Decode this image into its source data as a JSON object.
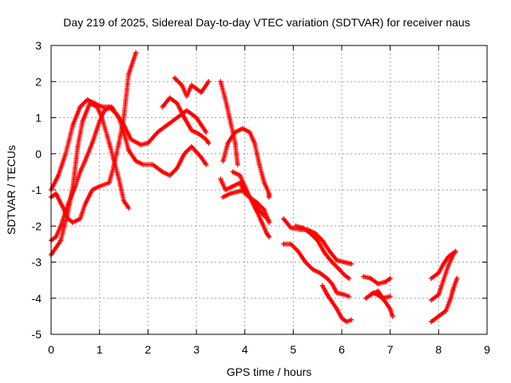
{
  "chart_data": {
    "type": "scatter",
    "title": "Day 219 of 2025, Sidereal Day-to-day VTEC variation (SDTVAR) for receiver naus",
    "xlabel": "GPS time / hours",
    "ylabel": "SDTVAR / TECUs",
    "xlim": [
      0,
      9
    ],
    "ylim": [
      -5,
      3
    ],
    "x_ticks": [
      "0",
      "1",
      "2",
      "3",
      "4",
      "5",
      "6",
      "7",
      "8",
      "9"
    ],
    "y_ticks": [
      "-5",
      "-4",
      "-3",
      "-2",
      "-1",
      "0",
      "1",
      "2",
      "3"
    ],
    "grid": true,
    "marker": "+",
    "color": "#ff0000",
    "series": [
      {
        "points": [
          [
            0,
            -2.8
          ],
          [
            0.2,
            -2.4
          ],
          [
            0.35,
            -1.6
          ],
          [
            0.45,
            -0.9
          ],
          [
            0.55,
            0.2
          ],
          [
            0.65,
            0.9
          ],
          [
            0.8,
            1.4
          ],
          [
            0.95,
            1.3
          ],
          [
            1.05,
            1.0
          ],
          [
            1.2,
            0.3
          ],
          [
            1.3,
            -0.2
          ],
          [
            1.4,
            -0.7
          ],
          [
            1.5,
            -1.3
          ],
          [
            1.6,
            -1.5
          ]
        ]
      },
      {
        "points": [
          [
            0,
            -1.2
          ],
          [
            0.1,
            -1.1
          ],
          [
            0.25,
            -1.5
          ],
          [
            0.35,
            -1.8
          ],
          [
            0.45,
            -1.9
          ],
          [
            0.6,
            -1.8
          ],
          [
            0.7,
            -1.4
          ],
          [
            0.85,
            -1.0
          ],
          [
            1.0,
            -0.9
          ],
          [
            1.2,
            -0.8
          ],
          [
            1.3,
            -0.3
          ],
          [
            1.4,
            0.3
          ],
          [
            1.5,
            1.0
          ],
          [
            1.6,
            2.2
          ],
          [
            1.75,
            2.8
          ]
        ]
      },
      {
        "points": [
          [
            0,
            -2.4
          ],
          [
            0.1,
            -2.3
          ],
          [
            0.2,
            -2.0
          ],
          [
            0.35,
            -1.4
          ],
          [
            0.5,
            -0.9
          ],
          [
            0.6,
            -0.5
          ],
          [
            0.7,
            -0.2
          ],
          [
            0.85,
            0.3
          ],
          [
            1.0,
            0.9
          ],
          [
            1.1,
            1.2
          ],
          [
            1.25,
            1.3
          ],
          [
            1.4,
            1.0
          ],
          [
            1.5,
            0.6
          ],
          [
            1.6,
            0.1
          ],
          [
            1.75,
            -0.2
          ],
          [
            1.9,
            -0.3
          ],
          [
            2.1,
            -0.3
          ],
          [
            2.3,
            -0.5
          ],
          [
            2.45,
            -0.6
          ],
          [
            2.6,
            -0.4
          ],
          [
            2.75,
            0.0
          ],
          [
            2.9,
            0.2
          ],
          [
            3.1,
            -0.1
          ],
          [
            3.2,
            -0.3
          ]
        ]
      },
      {
        "points": [
          [
            0,
            -1.0
          ],
          [
            0.15,
            -0.6
          ],
          [
            0.3,
            0.0
          ],
          [
            0.45,
            0.8
          ],
          [
            0.6,
            1.3
          ],
          [
            0.75,
            1.5
          ],
          [
            0.9,
            1.4
          ],
          [
            1.05,
            1.3
          ],
          [
            1.2,
            1.3
          ],
          [
            1.35,
            1.1
          ],
          [
            1.5,
            0.8
          ],
          [
            1.65,
            0.4
          ],
          [
            1.85,
            0.25
          ],
          [
            2.0,
            0.3
          ],
          [
            2.2,
            0.6
          ],
          [
            2.4,
            0.8
          ],
          [
            2.6,
            1.0
          ],
          [
            2.8,
            1.2
          ],
          [
            3.0,
            1.0
          ],
          [
            3.1,
            0.8
          ],
          [
            3.2,
            0.6
          ]
        ]
      },
      {
        "points": [
          [
            2.3,
            1.3
          ],
          [
            2.45,
            1.55
          ],
          [
            2.6,
            1.4
          ],
          [
            2.75,
            1.0
          ],
          [
            2.9,
            0.65
          ],
          [
            3.05,
            0.55
          ],
          [
            3.2,
            0.4
          ],
          [
            3.25,
            0.3
          ]
        ]
      },
      {
        "points": [
          [
            2.55,
            2.1
          ],
          [
            2.7,
            1.9
          ],
          [
            2.8,
            1.6
          ],
          [
            2.9,
            1.9
          ],
          [
            3.0,
            1.8
          ],
          [
            3.1,
            1.7
          ],
          [
            3.25,
            2.0
          ]
        ]
      },
      {
        "points": [
          [
            3.5,
            2.0
          ],
          [
            3.6,
            1.5
          ],
          [
            3.7,
            0.9
          ],
          [
            3.8,
            0.3
          ],
          [
            3.85,
            -0.3
          ]
        ]
      },
      {
        "points": [
          [
            3.55,
            -0.2
          ],
          [
            3.65,
            0.3
          ],
          [
            3.8,
            0.6
          ],
          [
            3.95,
            0.7
          ],
          [
            4.1,
            0.6
          ],
          [
            4.2,
            0.3
          ],
          [
            4.3,
            -0.3
          ],
          [
            4.4,
            -0.8
          ],
          [
            4.5,
            -1.1
          ],
          [
            4.5,
            -1.2
          ]
        ]
      },
      {
        "points": [
          [
            3.5,
            -0.7
          ],
          [
            3.6,
            -1.0
          ],
          [
            3.75,
            -0.9
          ],
          [
            3.9,
            -0.8
          ],
          [
            4.0,
            -1.1
          ],
          [
            4.1,
            -1.2
          ],
          [
            4.25,
            -1.6
          ],
          [
            4.35,
            -1.9
          ],
          [
            4.45,
            -2.2
          ],
          [
            4.5,
            -2.3
          ]
        ]
      },
      {
        "points": [
          [
            3.55,
            -1.2
          ],
          [
            3.7,
            -1.1
          ],
          [
            3.85,
            -1.05
          ],
          [
            4.0,
            -1.0
          ],
          [
            4.1,
            -1.2
          ],
          [
            4.2,
            -1.4
          ],
          [
            4.35,
            -1.65
          ],
          [
            4.5,
            -1.85
          ]
        ]
      },
      {
        "points": [
          [
            3.75,
            -0.5
          ],
          [
            3.9,
            -0.6
          ],
          [
            4.0,
            -0.9
          ],
          [
            4.1,
            -1.2
          ],
          [
            4.25,
            -1.35
          ],
          [
            4.4,
            -1.55
          ],
          [
            4.5,
            -1.9
          ]
        ]
      },
      {
        "points": [
          [
            4.8,
            -1.8
          ],
          [
            4.95,
            -2.05
          ],
          [
            5.15,
            -2.1
          ],
          [
            5.3,
            -2.1
          ],
          [
            5.45,
            -2.2
          ],
          [
            5.6,
            -2.4
          ],
          [
            5.75,
            -2.7
          ],
          [
            5.9,
            -2.95
          ],
          [
            6.05,
            -3.0
          ],
          [
            6.2,
            -3.05
          ]
        ]
      },
      {
        "points": [
          [
            5.05,
            -2.0
          ],
          [
            5.2,
            -2.05
          ],
          [
            5.35,
            -2.2
          ],
          [
            5.5,
            -2.4
          ],
          [
            5.65,
            -2.75
          ],
          [
            5.8,
            -3.0
          ],
          [
            5.95,
            -3.2
          ],
          [
            6.05,
            -3.35
          ],
          [
            6.15,
            -3.45
          ]
        ]
      },
      {
        "points": [
          [
            4.8,
            -2.5
          ],
          [
            4.95,
            -2.5
          ],
          [
            5.1,
            -2.7
          ],
          [
            5.25,
            -3.0
          ],
          [
            5.4,
            -3.2
          ],
          [
            5.55,
            -3.3
          ],
          [
            5.7,
            -3.45
          ],
          [
            5.8,
            -3.6
          ],
          [
            5.9,
            -3.85
          ],
          [
            6.05,
            -3.9
          ],
          [
            6.15,
            -3.95
          ]
        ]
      },
      {
        "points": [
          [
            5.6,
            -3.65
          ],
          [
            5.7,
            -3.9
          ],
          [
            5.8,
            -4.1
          ],
          [
            5.9,
            -4.3
          ],
          [
            6.0,
            -4.55
          ],
          [
            6.1,
            -4.65
          ],
          [
            6.2,
            -4.6
          ]
        ]
      },
      {
        "points": [
          [
            6.45,
            -3.4
          ],
          [
            6.6,
            -3.45
          ],
          [
            6.75,
            -3.6
          ],
          [
            6.9,
            -3.55
          ],
          [
            7.0,
            -3.45
          ]
        ]
      },
      {
        "points": [
          [
            6.5,
            -4.0
          ],
          [
            6.65,
            -3.85
          ],
          [
            6.8,
            -3.95
          ],
          [
            6.9,
            -4.1
          ],
          [
            7.0,
            -4.3
          ],
          [
            7.05,
            -4.5
          ]
        ]
      },
      {
        "points": [
          [
            6.6,
            -3.9
          ],
          [
            6.75,
            -3.8
          ],
          [
            6.85,
            -4.0
          ],
          [
            7.0,
            -3.95
          ]
        ]
      },
      {
        "points": [
          [
            7.85,
            -3.45
          ],
          [
            8.0,
            -3.3
          ],
          [
            8.1,
            -3.05
          ],
          [
            8.2,
            -2.85
          ],
          [
            8.3,
            -2.75
          ]
        ]
      },
      {
        "points": [
          [
            7.85,
            -4.05
          ],
          [
            8.0,
            -3.9
          ],
          [
            8.1,
            -3.5
          ],
          [
            8.2,
            -3.1
          ],
          [
            8.3,
            -2.8
          ],
          [
            8.35,
            -2.7
          ]
        ]
      },
      {
        "points": [
          [
            7.85,
            -4.65
          ],
          [
            8.0,
            -4.5
          ],
          [
            8.15,
            -4.35
          ],
          [
            8.25,
            -4.0
          ],
          [
            8.3,
            -3.75
          ],
          [
            8.38,
            -3.45
          ]
        ]
      }
    ]
  }
}
